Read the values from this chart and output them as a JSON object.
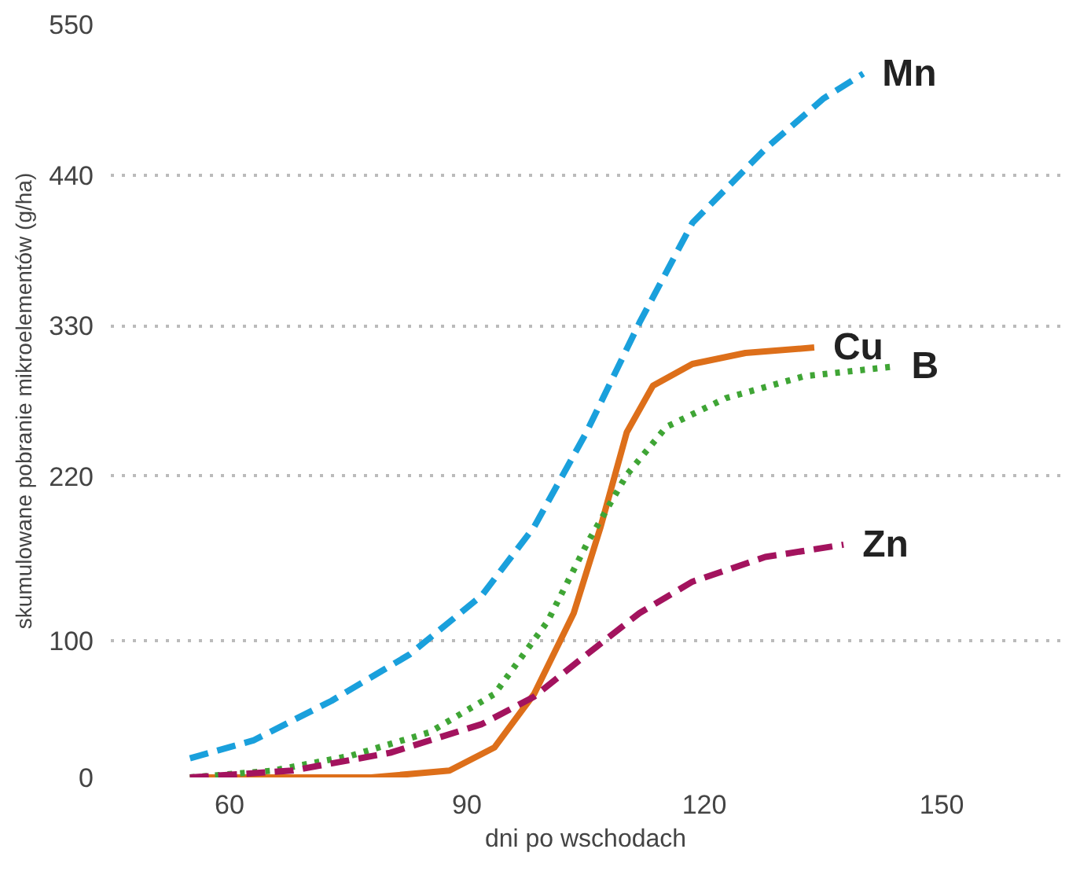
{
  "chart_data": {
    "type": "line",
    "xlabel": "dni po wschodach",
    "ylabel": "skumulowane pobranie mikroelementów (g/ha)",
    "xlim": [
      45,
      165
    ],
    "ylim": [
      0,
      550
    ],
    "xticks": [
      60,
      90,
      120,
      150
    ],
    "yticks": [
      0,
      100,
      220,
      330,
      440,
      550
    ],
    "grid": "y",
    "marker": "none",
    "series": [
      {
        "name": "Mn",
        "color": "#1aa0dc",
        "line_style": "dashed",
        "x": [
          55.0,
          63.0,
          72.9,
          82.8,
          91.9,
          98.5,
          105.1,
          111.8,
          118.5,
          127.7,
          135.1,
          140.1
        ],
        "values": [
          14,
          27,
          56,
          90,
          133,
          183,
          252,
          332,
          405,
          459,
          496,
          514
        ]
      },
      {
        "name": "Cu",
        "color": "#dd6f1a",
        "line_style": "solid",
        "x": [
          55.0,
          77.9,
          87.8,
          93.5,
          98.5,
          103.5,
          106.9,
          110.2,
          113.5,
          118.5,
          125.2,
          133.9
        ],
        "values": [
          0,
          0,
          5,
          22,
          61,
          120,
          183,
          252,
          286,
          302,
          310,
          314
        ]
      },
      {
        "name": "B",
        "color": "#3fa535",
        "line_style": "dotted",
        "x": [
          55.0,
          65.5,
          75.4,
          85.3,
          93.5,
          100.2,
          105.2,
          110.2,
          115.2,
          122.7,
          132.6,
          143.8
        ],
        "values": [
          0,
          5,
          16,
          33,
          61,
          114,
          171,
          221,
          256,
          277,
          293,
          300
        ]
      },
      {
        "name": "Zn",
        "color": "#a3135e",
        "line_style": "dashed",
        "x": [
          55.0,
          67.9,
          80.3,
          91.9,
          98.5,
          105.2,
          111.8,
          118.5,
          127.7,
          137.6
        ],
        "values": [
          0,
          5,
          18,
          39,
          59,
          90,
          120,
          143,
          161,
          170
        ]
      }
    ]
  }
}
